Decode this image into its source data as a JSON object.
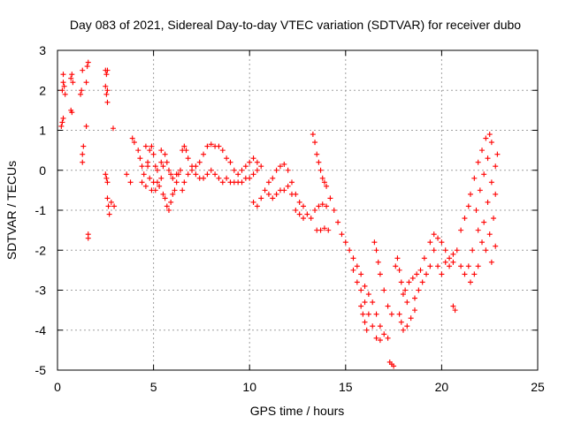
{
  "chart_data": {
    "type": "scatter",
    "title": "Day 083 of 2021, Sidereal Day-to-day VTEC variation (SDTVAR) for receiver dubo",
    "xlabel": "GPS time / hours",
    "ylabel": "SDTVAR / TECUs",
    "xlim": [
      0,
      25
    ],
    "ylim": [
      -5,
      3
    ],
    "xticks": [
      "0",
      "5",
      "10",
      "15",
      "20",
      "25"
    ],
    "yticks": [
      "-5",
      "-4",
      "-3",
      "-2",
      "-1",
      "0",
      "1",
      "2",
      "3"
    ],
    "grid": true,
    "marker": "+",
    "color": "#ff0000",
    "series": [
      {
        "name": "SDTVAR",
        "points": [
          [
            0.2,
            1.1
          ],
          [
            0.25,
            1.2
          ],
          [
            0.3,
            1.3
          ],
          [
            0.25,
            2.0
          ],
          [
            0.3,
            2.2
          ],
          [
            0.35,
            2.1
          ],
          [
            0.3,
            2.4
          ],
          [
            0.4,
            1.9
          ],
          [
            0.7,
            1.5
          ],
          [
            0.75,
            1.45
          ],
          [
            0.7,
            2.3
          ],
          [
            0.75,
            2.4
          ],
          [
            0.8,
            2.2
          ],
          [
            1.2,
            1.9
          ],
          [
            1.25,
            2.0
          ],
          [
            1.3,
            2.5
          ],
          [
            1.3,
            0.4
          ],
          [
            1.3,
            0.2
          ],
          [
            1.35,
            0.6
          ],
          [
            1.5,
            1.1
          ],
          [
            1.5,
            2.2
          ],
          [
            1.55,
            2.6
          ],
          [
            1.6,
            2.7
          ],
          [
            1.6,
            -1.6
          ],
          [
            1.6,
            -1.7
          ],
          [
            2.5,
            2.5
          ],
          [
            2.55,
            2.4
          ],
          [
            2.6,
            2.5
          ],
          [
            2.5,
            2.1
          ],
          [
            2.55,
            1.9
          ],
          [
            2.6,
            1.7
          ],
          [
            2.6,
            2.0
          ],
          [
            2.5,
            -0.1
          ],
          [
            2.55,
            -0.2
          ],
          [
            2.6,
            -0.3
          ],
          [
            2.6,
            -0.7
          ],
          [
            2.65,
            -0.9
          ],
          [
            2.7,
            -1.1
          ],
          [
            2.8,
            -0.8
          ],
          [
            2.95,
            -0.9
          ],
          [
            2.9,
            1.05
          ],
          [
            3.6,
            -0.1
          ],
          [
            3.8,
            -0.3
          ],
          [
            3.9,
            0.8
          ],
          [
            4.0,
            0.7
          ],
          [
            4.2,
            0.5
          ],
          [
            4.3,
            0.3
          ],
          [
            4.4,
            0.1
          ],
          [
            4.5,
            -0.1
          ],
          [
            4.4,
            -0.3
          ],
          [
            4.6,
            -0.4
          ],
          [
            4.7,
            0.2
          ],
          [
            4.8,
            0.5
          ],
          [
            4.9,
            0.6
          ],
          [
            5.0,
            0.4
          ],
          [
            5.1,
            0.1
          ],
          [
            5.2,
            0.0
          ],
          [
            4.6,
            0.6
          ],
          [
            4.7,
            0.1
          ],
          [
            4.8,
            -0.2
          ],
          [
            4.9,
            -0.5
          ],
          [
            5.0,
            -0.3
          ],
          [
            5.1,
            -0.5
          ],
          [
            5.2,
            -0.3
          ],
          [
            5.3,
            -0.4
          ],
          [
            5.4,
            -0.2
          ],
          [
            5.4,
            0.2
          ],
          [
            5.5,
            0.1
          ],
          [
            5.4,
            0.5
          ],
          [
            5.5,
            -0.6
          ],
          [
            5.6,
            -0.7
          ],
          [
            5.7,
            -0.9
          ],
          [
            5.8,
            -1.0
          ],
          [
            5.9,
            -0.8
          ],
          [
            6.0,
            -0.6
          ],
          [
            6.1,
            -0.5
          ],
          [
            6.2,
            -0.3
          ],
          [
            6.3,
            -0.1
          ],
          [
            6.4,
            0.0
          ],
          [
            5.6,
            0.4
          ],
          [
            5.7,
            0.2
          ],
          [
            5.8,
            0.0
          ],
          [
            5.9,
            -0.1
          ],
          [
            6.0,
            -0.2
          ],
          [
            6.2,
            -0.1
          ],
          [
            6.5,
            0.5
          ],
          [
            6.6,
            0.6
          ],
          [
            6.7,
            0.5
          ],
          [
            6.8,
            0.3
          ],
          [
            7.0,
            0.1
          ],
          [
            7.2,
            -0.1
          ],
          [
            7.4,
            -0.2
          ],
          [
            6.5,
            -0.5
          ],
          [
            6.6,
            -0.3
          ],
          [
            6.8,
            -0.1
          ],
          [
            7.0,
            0.0
          ],
          [
            7.2,
            0.1
          ],
          [
            7.4,
            0.2
          ],
          [
            7.6,
            0.4
          ],
          [
            7.8,
            0.6
          ],
          [
            8.0,
            0.65
          ],
          [
            8.2,
            0.6
          ],
          [
            8.4,
            0.6
          ],
          [
            8.6,
            0.5
          ],
          [
            8.8,
            0.3
          ],
          [
            9.0,
            0.2
          ],
          [
            7.6,
            -0.2
          ],
          [
            7.8,
            -0.1
          ],
          [
            8.0,
            0.0
          ],
          [
            8.2,
            -0.1
          ],
          [
            8.4,
            -0.2
          ],
          [
            8.6,
            -0.3
          ],
          [
            8.8,
            -0.2
          ],
          [
            9.0,
            -0.3
          ],
          [
            9.2,
            0.0
          ],
          [
            9.4,
            -0.1
          ],
          [
            9.6,
            0.0
          ],
          [
            9.8,
            0.1
          ],
          [
            10.0,
            0.2
          ],
          [
            10.2,
            0.3
          ],
          [
            10.4,
            0.2
          ],
          [
            10.6,
            0.1
          ],
          [
            9.2,
            -0.3
          ],
          [
            9.4,
            -0.3
          ],
          [
            9.6,
            -0.3
          ],
          [
            9.8,
            -0.2
          ],
          [
            10.0,
            -0.2
          ],
          [
            10.2,
            -0.1
          ],
          [
            10.4,
            0.0
          ],
          [
            10.2,
            -0.8
          ],
          [
            10.4,
            -0.9
          ],
          [
            10.6,
            -0.7
          ],
          [
            10.8,
            -0.5
          ],
          [
            11.0,
            -0.3
          ],
          [
            11.2,
            -0.2
          ],
          [
            11.4,
            0.0
          ],
          [
            11.6,
            0.1
          ],
          [
            11.8,
            0.15
          ],
          [
            12.0,
            0.0
          ],
          [
            12.2,
            -0.3
          ],
          [
            12.4,
            -0.6
          ],
          [
            12.6,
            -0.8
          ],
          [
            12.8,
            -0.9
          ],
          [
            11.0,
            -0.6
          ],
          [
            11.2,
            -0.7
          ],
          [
            11.4,
            -0.6
          ],
          [
            11.6,
            -0.5
          ],
          [
            11.8,
            -0.5
          ],
          [
            12.0,
            -0.4
          ],
          [
            12.2,
            -0.6
          ],
          [
            12.4,
            -1.0
          ],
          [
            12.6,
            -1.1
          ],
          [
            12.8,
            -1.2
          ],
          [
            13.0,
            -1.1
          ],
          [
            13.2,
            -1.2
          ],
          [
            13.4,
            -1.0
          ],
          [
            13.5,
            -1.5
          ],
          [
            13.7,
            -1.5
          ],
          [
            13.9,
            -1.45
          ],
          [
            14.1,
            -1.5
          ],
          [
            13.6,
            -0.9
          ],
          [
            13.8,
            -0.85
          ],
          [
            14.0,
            -0.9
          ],
          [
            13.3,
            0.9
          ],
          [
            13.4,
            0.7
          ],
          [
            13.5,
            0.4
          ],
          [
            13.6,
            0.2
          ],
          [
            13.7,
            0.0
          ],
          [
            13.8,
            -0.2
          ],
          [
            13.9,
            -0.3
          ],
          [
            14.0,
            -0.4
          ],
          [
            14.2,
            -0.7
          ],
          [
            14.4,
            -1.0
          ],
          [
            14.6,
            -1.3
          ],
          [
            14.8,
            -1.6
          ],
          [
            15.0,
            -1.8
          ],
          [
            15.2,
            -2.0
          ],
          [
            15.4,
            -2.2
          ],
          [
            15.6,
            -2.4
          ],
          [
            15.8,
            -2.6
          ],
          [
            16.0,
            -2.9
          ],
          [
            16.2,
            -3.1
          ],
          [
            16.4,
            -3.3
          ],
          [
            16.6,
            -3.6
          ],
          [
            16.8,
            -3.9
          ],
          [
            17.0,
            -4.1
          ],
          [
            17.2,
            -4.2
          ],
          [
            15.4,
            -2.5
          ],
          [
            15.6,
            -2.8
          ],
          [
            15.8,
            -3.0
          ],
          [
            16.0,
            -3.3
          ],
          [
            16.2,
            -3.6
          ],
          [
            15.8,
            -3.4
          ],
          [
            15.9,
            -3.6
          ],
          [
            16.0,
            -3.8
          ],
          [
            16.1,
            -4.0
          ],
          [
            16.4,
            -3.9
          ],
          [
            16.6,
            -4.2
          ],
          [
            16.8,
            -4.25
          ],
          [
            16.5,
            -1.8
          ],
          [
            16.6,
            -2.0
          ],
          [
            16.7,
            -2.3
          ],
          [
            16.8,
            -2.6
          ],
          [
            17.0,
            -3.0
          ],
          [
            17.2,
            -3.4
          ],
          [
            17.4,
            -3.6
          ],
          [
            17.3,
            -4.8
          ],
          [
            17.4,
            -4.85
          ],
          [
            17.5,
            -4.9
          ],
          [
            17.6,
            -2.4
          ],
          [
            17.7,
            -2.2
          ],
          [
            17.8,
            -2.5
          ],
          [
            17.9,
            -2.8
          ],
          [
            18.0,
            -3.1
          ],
          [
            18.2,
            -3.3
          ],
          [
            17.8,
            -3.6
          ],
          [
            17.9,
            -3.8
          ],
          [
            18.0,
            -4.0
          ],
          [
            18.2,
            -3.9
          ],
          [
            18.4,
            -3.7
          ],
          [
            18.6,
            -3.5
          ],
          [
            18.1,
            -3.0
          ],
          [
            18.3,
            -2.8
          ],
          [
            18.5,
            -2.7
          ],
          [
            18.7,
            -2.6
          ],
          [
            18.9,
            -2.5
          ],
          [
            19.1,
            -2.2
          ],
          [
            18.6,
            -3.2
          ],
          [
            18.8,
            -3.0
          ],
          [
            19.0,
            -2.8
          ],
          [
            19.2,
            -2.6
          ],
          [
            19.4,
            -2.4
          ],
          [
            19.6,
            -2.0
          ],
          [
            19.4,
            -1.8
          ],
          [
            19.6,
            -1.6
          ],
          [
            19.8,
            -1.7
          ],
          [
            20.0,
            -1.8
          ],
          [
            20.2,
            -2.0
          ],
          [
            20.4,
            -2.2
          ],
          [
            20.6,
            -2.3
          ],
          [
            19.8,
            -2.4
          ],
          [
            20.0,
            -2.6
          ],
          [
            20.2,
            -2.3
          ],
          [
            20.4,
            -2.4
          ],
          [
            20.6,
            -2.1
          ],
          [
            20.8,
            -2.0
          ],
          [
            20.6,
            -3.4
          ],
          [
            20.7,
            -3.5
          ],
          [
            21.0,
            -2.4
          ],
          [
            21.2,
            -2.6
          ],
          [
            21.4,
            -2.4
          ],
          [
            21.6,
            -2.0
          ],
          [
            21.0,
            -1.5
          ],
          [
            21.2,
            -1.2
          ],
          [
            21.4,
            -0.9
          ],
          [
            21.5,
            -0.6
          ],
          [
            21.7,
            -0.2
          ],
          [
            21.9,
            0.2
          ],
          [
            22.1,
            0.5
          ],
          [
            22.3,
            0.8
          ],
          [
            22.5,
            0.9
          ],
          [
            22.6,
            0.7
          ],
          [
            22.4,
            0.3
          ],
          [
            22.2,
            -0.1
          ],
          [
            22.0,
            -0.5
          ],
          [
            21.8,
            -1.0
          ],
          [
            21.9,
            -1.5
          ],
          [
            22.1,
            -1.8
          ],
          [
            22.2,
            -1.3
          ],
          [
            22.4,
            -0.8
          ],
          [
            22.6,
            -0.3
          ],
          [
            22.8,
            0.1
          ],
          [
            22.9,
            0.4
          ],
          [
            22.3,
            -2.0
          ],
          [
            22.5,
            -1.6
          ],
          [
            22.7,
            -1.2
          ],
          [
            22.8,
            -0.6
          ],
          [
            22.6,
            -2.3
          ],
          [
            22.8,
            -1.9
          ],
          [
            21.5,
            -2.8
          ],
          [
            21.7,
            -2.6
          ],
          [
            21.9,
            -2.4
          ]
        ]
      }
    ]
  }
}
